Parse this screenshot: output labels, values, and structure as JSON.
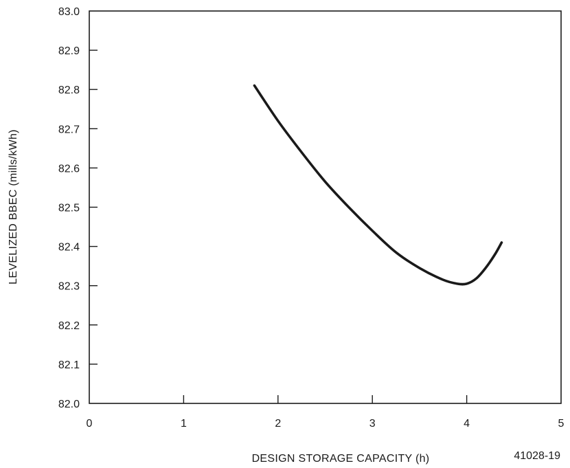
{
  "chart_data": {
    "type": "line",
    "title": "",
    "xlabel": "DESIGN STORAGE CAPACITY (h)",
    "ylabel": "LEVELIZED BBEC (mills/kWh)",
    "xlim": [
      0,
      5
    ],
    "ylim": [
      82.0,
      83.0
    ],
    "x_ticks": [
      "0",
      "1",
      "2",
      "3",
      "4",
      "5"
    ],
    "y_ticks": [
      "82.0",
      "82.1",
      "82.2",
      "82.3",
      "82.4",
      "82.5",
      "82.6",
      "82.7",
      "82.8",
      "82.9",
      "83.0"
    ],
    "grid": false,
    "series": [
      {
        "x": [
          1.75,
          2.0,
          2.25,
          2.5,
          2.75,
          3.0,
          3.25,
          3.5,
          3.75,
          3.9,
          4.0,
          4.1,
          4.2,
          4.3,
          4.37
        ],
        "y": [
          82.81,
          82.72,
          82.64,
          82.565,
          82.5,
          82.44,
          82.385,
          82.345,
          82.315,
          82.305,
          82.305,
          82.318,
          82.345,
          82.38,
          82.41
        ],
        "color": "#1a1a1a"
      }
    ],
    "figure_id": "41028-19"
  }
}
